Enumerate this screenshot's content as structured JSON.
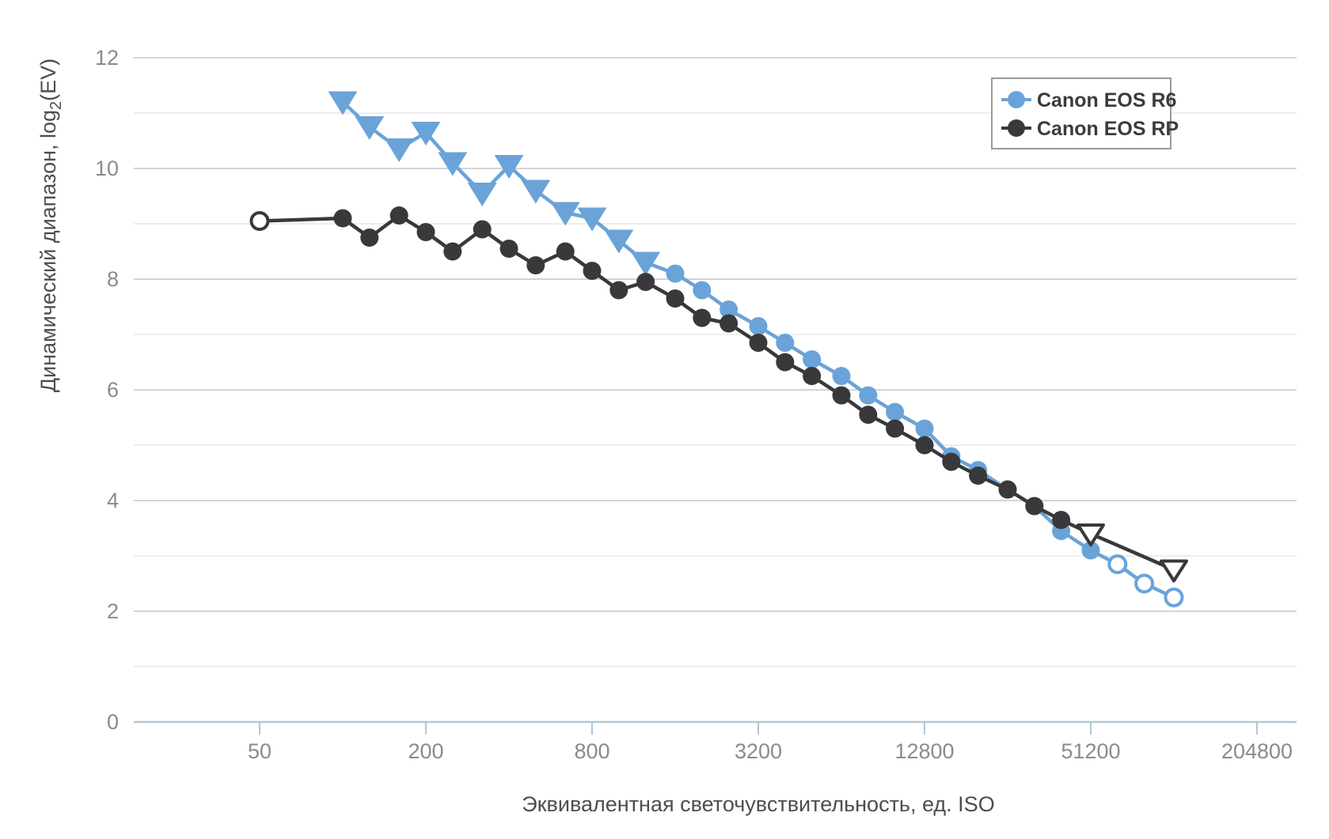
{
  "page": {
    "background": "#FFFFFF"
  },
  "chart_data": {
    "type": "line",
    "title": "",
    "x_axis": {
      "title": "Эквивалентная светочувствительность, ед. ISO",
      "scale": "log",
      "tick_values": [
        50,
        200,
        800,
        3200,
        12800,
        51200,
        204800
      ]
    },
    "y_axis": {
      "title_main": "Динамический диапазон, log",
      "title_sub": "2",
      "title_tail": "(EV)",
      "tick_values": [
        0,
        2,
        4,
        6,
        8,
        10,
        12
      ],
      "range": [
        0,
        12
      ],
      "gridline_step": 1
    },
    "legend": {
      "position": "top-right",
      "items": [
        "Canon EOS R6",
        "Canon EOS RP"
      ]
    },
    "colors": {
      "r6": "#6AA3D8",
      "rp": "#39393B",
      "grid_major": "#C6C6C6",
      "grid_minor": "#E2E2E2",
      "axis_line": "#B2C6D4",
      "tick_label": "#8B8B8B",
      "axis_title": "#4D4D4D",
      "legend_text": "#3B3B3B",
      "legend_border": "#999999"
    },
    "point_format": [
      "iso",
      "pdr_ev",
      "marker"
    ],
    "series": [
      {
        "name": "Canon EOS R6",
        "color": "#6AA3D8",
        "points": [
          [
            100,
            11.2,
            "triangle-filled"
          ],
          [
            125,
            10.75,
            "triangle-filled"
          ],
          [
            160,
            10.35,
            "triangle-filled"
          ],
          [
            200,
            10.65,
            "triangle-filled"
          ],
          [
            250,
            10.1,
            "triangle-filled"
          ],
          [
            320,
            9.55,
            "triangle-filled"
          ],
          [
            400,
            10.05,
            "triangle-filled"
          ],
          [
            500,
            9.6,
            "triangle-filled"
          ],
          [
            640,
            9.2,
            "triangle-filled"
          ],
          [
            800,
            9.1,
            "triangle-filled"
          ],
          [
            1000,
            8.7,
            "triangle-filled"
          ],
          [
            1250,
            8.3,
            "triangle-filled"
          ],
          [
            1600,
            8.1,
            "circle-filled"
          ],
          [
            2000,
            7.8,
            "circle-filled"
          ],
          [
            2500,
            7.45,
            "circle-filled"
          ],
          [
            3200,
            7.15,
            "circle-filled"
          ],
          [
            4000,
            6.85,
            "circle-filled"
          ],
          [
            5000,
            6.55,
            "circle-filled"
          ],
          [
            6400,
            6.25,
            "circle-filled"
          ],
          [
            8000,
            5.9,
            "circle-filled"
          ],
          [
            10000,
            5.6,
            "circle-filled"
          ],
          [
            12800,
            5.3,
            "circle-filled"
          ],
          [
            16000,
            4.8,
            "circle-filled"
          ],
          [
            20000,
            4.55,
            "circle-filled"
          ],
          [
            25600,
            4.2,
            "circle-filled"
          ],
          [
            32000,
            3.9,
            "circle-filled"
          ],
          [
            40000,
            3.45,
            "circle-filled"
          ],
          [
            51200,
            3.1,
            "circle-filled"
          ],
          [
            64000,
            2.85,
            "circle-open"
          ],
          [
            80000,
            2.5,
            "circle-open"
          ],
          [
            102400,
            2.25,
            "circle-open"
          ]
        ]
      },
      {
        "name": "Canon EOS RP",
        "color": "#39393B",
        "points": [
          [
            50,
            9.05,
            "circle-open"
          ],
          [
            100,
            9.1,
            "circle-filled"
          ],
          [
            125,
            8.75,
            "circle-filled"
          ],
          [
            160,
            9.15,
            "circle-filled"
          ],
          [
            200,
            8.85,
            "circle-filled"
          ],
          [
            250,
            8.5,
            "circle-filled"
          ],
          [
            320,
            8.9,
            "circle-filled"
          ],
          [
            400,
            8.55,
            "circle-filled"
          ],
          [
            500,
            8.25,
            "circle-filled"
          ],
          [
            640,
            8.5,
            "circle-filled"
          ],
          [
            800,
            8.15,
            "circle-filled"
          ],
          [
            1000,
            7.8,
            "circle-filled"
          ],
          [
            1250,
            7.95,
            "circle-filled"
          ],
          [
            1600,
            7.65,
            "circle-filled"
          ],
          [
            2000,
            7.3,
            "circle-filled"
          ],
          [
            2500,
            7.2,
            "circle-filled"
          ],
          [
            3200,
            6.85,
            "circle-filled"
          ],
          [
            4000,
            6.5,
            "circle-filled"
          ],
          [
            5000,
            6.25,
            "circle-filled"
          ],
          [
            6400,
            5.9,
            "circle-filled"
          ],
          [
            8000,
            5.55,
            "circle-filled"
          ],
          [
            10000,
            5.3,
            "circle-filled"
          ],
          [
            12800,
            5.0,
            "circle-filled"
          ],
          [
            16000,
            4.7,
            "circle-filled"
          ],
          [
            20000,
            4.45,
            "circle-filled"
          ],
          [
            25600,
            4.2,
            "circle-filled"
          ],
          [
            32000,
            3.9,
            "circle-filled"
          ],
          [
            40000,
            3.65,
            "circle-filled"
          ],
          [
            51200,
            3.4,
            "triangle-open"
          ],
          [
            102400,
            2.75,
            "triangle-open"
          ]
        ]
      }
    ]
  }
}
